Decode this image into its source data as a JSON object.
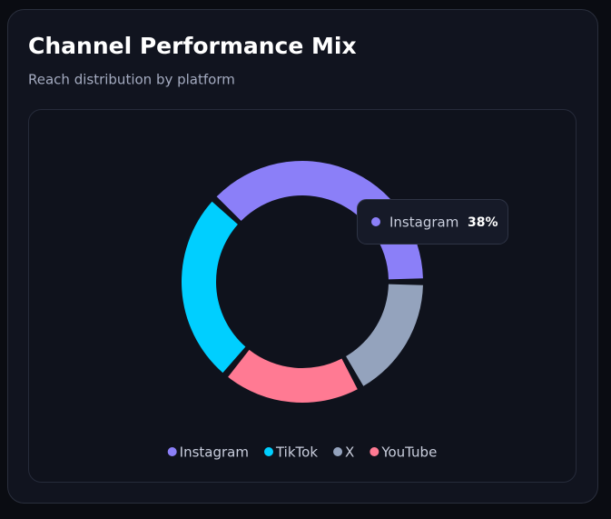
{
  "chart_data": {
    "type": "donut",
    "title": "Channel Performance Mix",
    "subtitle": "Reach distribution by platform",
    "categories": [
      "Instagram",
      "TikTok",
      "X",
      "YouTube"
    ],
    "values": [
      38,
      26,
      17,
      19
    ],
    "value_labels": [
      "38%",
      "26%",
      "17%",
      "19%"
    ],
    "colors": [
      "#8b7ff8",
      "#00cfff",
      "#94a3bd",
      "#ff7a93"
    ]
  }
}
